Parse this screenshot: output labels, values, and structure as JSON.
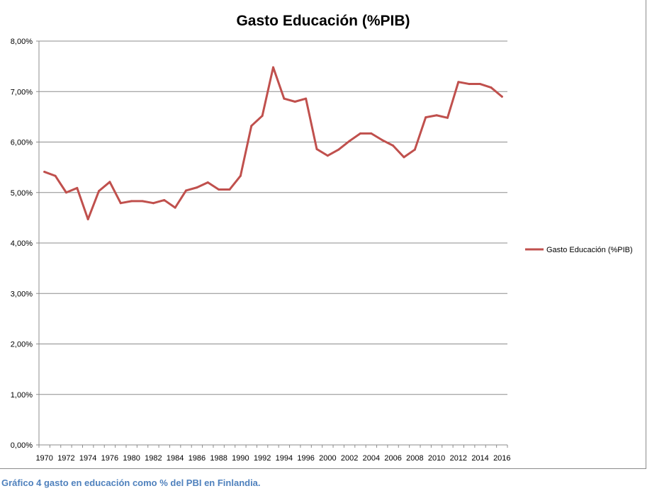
{
  "chart_data": {
    "type": "line",
    "title": "Gasto Educación (%PIB)",
    "xlabel": "",
    "ylabel": "",
    "ylim": [
      0,
      8
    ],
    "y_tick_values": [
      0,
      1,
      2,
      3,
      4,
      5,
      6,
      7,
      8
    ],
    "y_tick_labels": [
      "0,00%",
      "1,00%",
      "2,00%",
      "3,00%",
      "4,00%",
      "5,00%",
      "6,00%",
      "7,00%",
      "8,00%"
    ],
    "x_tick_labels": [
      "1970",
      "1972",
      "1974",
      "1976",
      "1980",
      "1982",
      "1984",
      "1986",
      "1988",
      "1990",
      "1992",
      "1994",
      "1996",
      "2000",
      "2002",
      "2004",
      "2006",
      "2008",
      "2010",
      "2012",
      "2014",
      "2016"
    ],
    "grid": true,
    "legend_position": "right",
    "series": [
      {
        "name": "Gasto Educación (%PIB)",
        "color": "#c0504d",
        "x": [
          "1970",
          "1971",
          "1972",
          "1973",
          "1974",
          "1975",
          "1976",
          "1977",
          "1980",
          "1981",
          "1982",
          "1983",
          "1984",
          "1985",
          "1986",
          "1987",
          "1988",
          "1989",
          "1990",
          "1991",
          "1992",
          "1993",
          "1994",
          "1995",
          "1996",
          "1997",
          "2000",
          "2001",
          "2002",
          "2003",
          "2004",
          "2005",
          "2006",
          "2007",
          "2008",
          "2009",
          "2010",
          "2011",
          "2012",
          "2013",
          "2014",
          "2015",
          "2016"
        ],
        "values": [
          5.41,
          5.33,
          5.0,
          5.09,
          4.47,
          5.03,
          5.21,
          4.79,
          4.83,
          4.83,
          4.79,
          4.85,
          4.7,
          5.04,
          5.1,
          5.2,
          5.06,
          5.06,
          5.33,
          6.32,
          6.52,
          7.48,
          6.86,
          6.8,
          6.86,
          5.86,
          5.73,
          5.85,
          6.02,
          6.17,
          6.17,
          6.04,
          5.93,
          5.7,
          5.85,
          6.49,
          6.53,
          6.48,
          7.19,
          7.15,
          7.15,
          7.08,
          6.9
        ]
      }
    ]
  },
  "caption": "Gráfico 4 gasto en educación como % del PBI en Finlandia."
}
